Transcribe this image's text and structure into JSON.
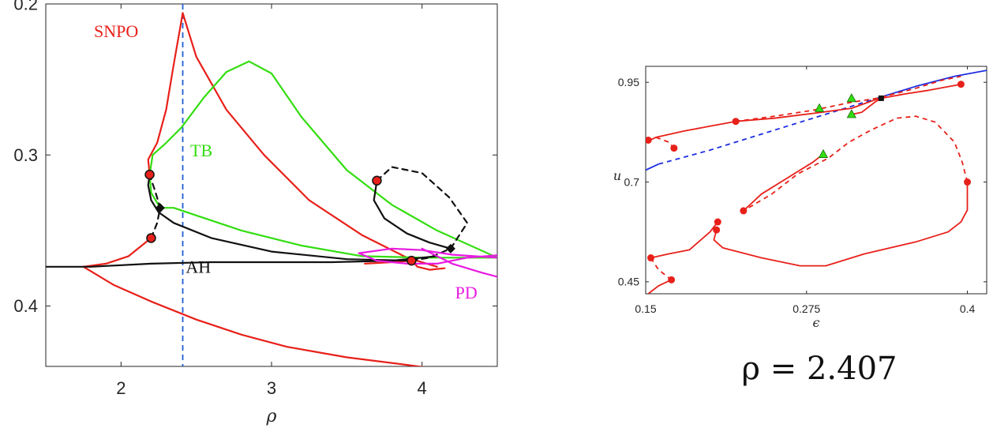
{
  "chart_data": [
    {
      "type": "line",
      "xlabel": "ρ",
      "ylabel": "",
      "xlim": [
        1.5,
        4.5
      ],
      "ylim": [
        0.2,
        0.44
      ],
      "y_reversed": true,
      "x_ticks": [
        "2",
        "3",
        "4"
      ],
      "y_ticks": [
        "0.2",
        "0.3",
        "0.4"
      ],
      "x_tick_values": [
        2,
        3,
        4
      ],
      "y_tick_values": [
        0.2,
        0.3,
        0.4
      ],
      "vline": {
        "x": 2.41,
        "color": "#1f5fd0",
        "style": "dashed"
      },
      "labels": [
        {
          "text": "SNPO",
          "x": 1.82,
          "y": 0.222,
          "color": "#e8201a"
        },
        {
          "text": "TB",
          "x": 2.46,
          "y": 0.301,
          "color": "#33dd11"
        },
        {
          "text": "AH",
          "x": 2.43,
          "y": 0.378,
          "color": "#111111"
        },
        {
          "text": "PD",
          "x": 4.22,
          "y": 0.395,
          "color": "#e81ae0"
        }
      ],
      "series": [
        {
          "color": "#e8201a",
          "style": "solid",
          "points": [
            [
              1.75,
              0.374
            ],
            [
              1.9,
              0.372
            ],
            [
              2.05,
              0.367
            ],
            [
              2.2,
              0.355
            ]
          ]
        },
        {
          "color": "#e8201a",
          "style": "solid",
          "points": [
            [
              1.75,
              0.374
            ],
            [
              1.95,
              0.386
            ],
            [
              2.2,
              0.397
            ],
            [
              2.5,
              0.409
            ],
            [
              2.8,
              0.419
            ],
            [
              3.1,
              0.427
            ],
            [
              3.5,
              0.434
            ],
            [
              3.9,
              0.439
            ],
            [
              4.05,
              0.441
            ]
          ]
        },
        {
          "color": "#e8201a",
          "style": "solid",
          "points": [
            [
              2.19,
              0.313
            ],
            [
              2.18,
              0.303
            ],
            [
              2.24,
              0.292
            ],
            [
              2.3,
              0.27
            ],
            [
              2.35,
              0.24
            ],
            [
              2.41,
              0.206
            ]
          ]
        },
        {
          "color": "#e8201a",
          "style": "solid",
          "points": [
            [
              2.41,
              0.206
            ],
            [
              2.5,
              0.235
            ],
            [
              2.7,
              0.27
            ],
            [
              2.95,
              0.3
            ],
            [
              3.25,
              0.33
            ],
            [
              3.6,
              0.353
            ],
            [
              3.9,
              0.368
            ],
            [
              4.1,
              0.374
            ]
          ]
        },
        {
          "color": "#e8201a",
          "style": "solid",
          "points": [
            [
              3.62,
              0.372
            ],
            [
              3.8,
              0.371
            ],
            [
              3.93,
              0.37
            ],
            [
              3.97,
              0.374
            ],
            [
              4.05,
              0.376
            ],
            [
              4.15,
              0.375
            ]
          ]
        },
        {
          "color": "#33dd11",
          "style": "solid",
          "points": [
            [
              2.19,
              0.313
            ],
            [
              2.21,
              0.3
            ],
            [
              2.3,
              0.292
            ],
            [
              2.4,
              0.282
            ],
            [
              2.55,
              0.262
            ],
            [
              2.7,
              0.245
            ],
            [
              2.85,
              0.238
            ],
            [
              3.0,
              0.246
            ],
            [
              3.2,
              0.275
            ],
            [
              3.5,
              0.31
            ],
            [
              3.8,
              0.333
            ],
            [
              4.1,
              0.35
            ],
            [
              4.5,
              0.368
            ]
          ]
        },
        {
          "color": "#33dd11",
          "style": "solid",
          "points": [
            [
              2.19,
              0.313
            ],
            [
              2.2,
              0.325
            ],
            [
              2.26,
              0.335
            ],
            [
              2.35,
              0.335
            ],
            [
              2.5,
              0.34
            ],
            [
              2.8,
              0.35
            ],
            [
              3.2,
              0.36
            ],
            [
              3.6,
              0.367
            ],
            [
              4.0,
              0.368
            ],
            [
              4.5,
              0.368
            ]
          ]
        },
        {
          "color": "#111111",
          "style": "solid",
          "points": [
            [
              1.5,
              0.374
            ],
            [
              1.8,
              0.374
            ],
            [
              2.2,
              0.372
            ],
            [
              2.6,
              0.371
            ],
            [
              3.0,
              0.371
            ],
            [
              3.4,
              0.371
            ],
            [
              3.8,
              0.37
            ],
            [
              4.1,
              0.367
            ]
          ]
        },
        {
          "color": "#111111",
          "style": "solid",
          "points": [
            [
              2.19,
              0.313
            ],
            [
              2.18,
              0.32
            ],
            [
              2.2,
              0.33
            ],
            [
              2.25,
              0.338
            ],
            [
              2.35,
              0.345
            ],
            [
              2.6,
              0.355
            ],
            [
              3.0,
              0.364
            ],
            [
              3.5,
              0.369
            ],
            [
              3.93,
              0.37
            ]
          ]
        },
        {
          "color": "#111111",
          "style": "dashed",
          "points": [
            [
              2.2,
              0.355
            ],
            [
              2.24,
              0.345
            ],
            [
              2.26,
              0.335
            ],
            [
              2.23,
              0.325
            ],
            [
              2.19,
              0.313
            ]
          ]
        },
        {
          "color": "#111111",
          "style": "solid",
          "points": [
            [
              3.7,
              0.317
            ],
            [
              3.68,
              0.33
            ],
            [
              3.75,
              0.342
            ],
            [
              3.9,
              0.352
            ],
            [
              4.05,
              0.358
            ],
            [
              4.19,
              0.362
            ]
          ]
        },
        {
          "color": "#111111",
          "style": "dashed",
          "points": [
            [
              3.7,
              0.317
            ],
            [
              3.8,
              0.308
            ],
            [
              4.0,
              0.312
            ],
            [
              4.18,
              0.328
            ],
            [
              4.3,
              0.345
            ],
            [
              4.19,
              0.362
            ],
            [
              4.05,
              0.368
            ],
            [
              3.93,
              0.37
            ]
          ]
        },
        {
          "color": "#e81ae0",
          "style": "solid",
          "points": [
            [
              3.58,
              0.365
            ],
            [
              3.8,
              0.362
            ],
            [
              4.0,
              0.363
            ],
            [
              4.2,
              0.366
            ],
            [
              4.5,
              0.368
            ],
            [
              4.55,
              0.369
            ]
          ]
        },
        {
          "color": "#e81ae0",
          "style": "solid",
          "points": [
            [
              3.58,
              0.365
            ],
            [
              3.7,
              0.37
            ],
            [
              3.9,
              0.372
            ],
            [
              4.1,
              0.372
            ],
            [
              4.3,
              0.368
            ],
            [
              4.55,
              0.366
            ]
          ]
        },
        {
          "color": "#e81ae0",
          "style": "solid",
          "points": [
            [
              4.0,
              0.362
            ],
            [
              4.2,
              0.372
            ],
            [
              4.4,
              0.378
            ],
            [
              4.55,
              0.382
            ]
          ]
        }
      ],
      "markers": [
        {
          "x": 2.19,
          "y": 0.313,
          "shape": "circle"
        },
        {
          "x": 2.2,
          "y": 0.355,
          "shape": "circle"
        },
        {
          "x": 3.7,
          "y": 0.317,
          "shape": "circle"
        },
        {
          "x": 3.93,
          "y": 0.37,
          "shape": "circle"
        },
        {
          "x": 2.26,
          "y": 0.335,
          "shape": "diamond"
        },
        {
          "x": 4.19,
          "y": 0.362,
          "shape": "diamond"
        }
      ]
    },
    {
      "type": "line",
      "xlabel": "ϵ",
      "ylabel": "u",
      "xlim": [
        0.15,
        0.415
      ],
      "ylim": [
        0.42,
        0.99
      ],
      "x_ticks": [
        "0.15",
        "0.275",
        "0.4"
      ],
      "y_ticks": [
        "0.45",
        "0.7",
        "0.95"
      ],
      "x_tick_values": [
        0.15,
        0.275,
        0.4
      ],
      "y_tick_values": [
        0.45,
        0.7,
        0.95
      ],
      "caption": "ρ = 2.407",
      "series": [
        {
          "color": "#1f2ee0",
          "style": "solid",
          "points": [
            [
              0.15,
              0.73
            ],
            [
              0.16,
              0.745
            ]
          ]
        },
        {
          "color": "#1f2ee0",
          "style": "dashed",
          "points": [
            [
              0.16,
              0.745
            ],
            [
              0.2,
              0.78
            ],
            [
              0.25,
              0.83
            ],
            [
              0.3,
              0.88
            ],
            [
              0.33,
              0.91
            ]
          ]
        },
        {
          "color": "#1f2ee0",
          "style": "solid",
          "points": [
            [
              0.33,
              0.91
            ],
            [
              0.36,
              0.94
            ],
            [
              0.39,
              0.965
            ],
            [
              0.415,
              0.98
            ]
          ]
        },
        {
          "color": "#e8201a",
          "style": "solid",
          "points": [
            [
              0.15,
              0.8
            ],
            [
              0.158,
              0.812
            ],
            [
              0.18,
              0.828
            ],
            [
              0.2,
              0.84
            ],
            [
              0.22,
              0.852
            ]
          ]
        },
        {
          "color": "#e8201a",
          "style": "dashed",
          "points": [
            [
              0.158,
              0.812
            ],
            [
              0.168,
              0.8
            ],
            [
              0.172,
              0.785
            ]
          ]
        },
        {
          "color": "#e8201a",
          "style": "solid",
          "points": [
            [
              0.22,
              0.852
            ],
            [
              0.25,
              0.86
            ],
            [
              0.28,
              0.872
            ],
            [
              0.31,
              0.885
            ],
            [
              0.33,
              0.908
            ],
            [
              0.35,
              0.92
            ],
            [
              0.37,
              0.93
            ],
            [
              0.395,
              0.945
            ]
          ]
        },
        {
          "color": "#e8201a",
          "style": "dashed",
          "points": [
            [
              0.22,
              0.852
            ],
            [
              0.25,
              0.865
            ],
            [
              0.28,
              0.88
            ],
            [
              0.31,
              0.9
            ],
            [
              0.33,
              0.91
            ],
            [
              0.36,
              0.935
            ],
            [
              0.38,
              0.955
            ],
            [
              0.395,
              0.965
            ]
          ]
        },
        {
          "color": "#e8201a",
          "style": "solid",
          "points": [
            [
              0.308,
              0.868
            ],
            [
              0.318,
              0.875
            ],
            [
              0.328,
              0.9
            ],
            [
              0.333,
              0.91
            ]
          ]
        },
        {
          "color": "#e8201a",
          "style": "solid",
          "points": [
            [
              0.206,
              0.6
            ],
            [
              0.2,
              0.575
            ],
            [
              0.184,
              0.53
            ],
            [
              0.168,
              0.52
            ],
            [
              0.154,
              0.51
            ]
          ]
        },
        {
          "color": "#e8201a",
          "style": "dashed",
          "points": [
            [
              0.154,
              0.51
            ],
            [
              0.16,
              0.48
            ],
            [
              0.17,
              0.455
            ]
          ]
        },
        {
          "color": "#e8201a",
          "style": "solid",
          "points": [
            [
              0.17,
              0.455
            ],
            [
              0.16,
              0.44
            ],
            [
              0.152,
              0.42
            ]
          ]
        },
        {
          "color": "#e8201a",
          "style": "solid",
          "points": [
            [
              0.205,
              0.58
            ],
            [
              0.203,
              0.555
            ],
            [
              0.21,
              0.535
            ],
            [
              0.24,
              0.51
            ],
            [
              0.27,
              0.49
            ],
            [
              0.29,
              0.49
            ],
            [
              0.32,
              0.52
            ],
            [
              0.36,
              0.55
            ],
            [
              0.385,
              0.575
            ],
            [
              0.395,
              0.6
            ],
            [
              0.4,
              0.63
            ],
            [
              0.4,
              0.7
            ]
          ]
        },
        {
          "color": "#e8201a",
          "style": "dashed",
          "points": [
            [
              0.4,
              0.7
            ],
            [
              0.396,
              0.75
            ],
            [
              0.39,
              0.8
            ],
            [
              0.375,
              0.85
            ],
            [
              0.36,
              0.865
            ],
            [
              0.345,
              0.86
            ],
            [
              0.325,
              0.83
            ],
            [
              0.308,
              0.8
            ],
            [
              0.292,
              0.76
            ],
            [
              0.268,
              0.72
            ],
            [
              0.248,
              0.67
            ],
            [
              0.226,
              0.628
            ]
          ]
        },
        {
          "color": "#e8201a",
          "style": "solid",
          "points": [
            [
              0.226,
              0.628
            ],
            [
              0.24,
              0.67
            ],
            [
              0.26,
              0.71
            ],
            [
              0.28,
              0.75
            ],
            [
              0.288,
              0.77
            ]
          ]
        }
      ],
      "markers": [
        {
          "x": 0.152,
          "y": 0.805,
          "shape": "circle"
        },
        {
          "x": 0.172,
          "y": 0.785,
          "shape": "circle"
        },
        {
          "x": 0.22,
          "y": 0.852,
          "shape": "circle"
        },
        {
          "x": 0.395,
          "y": 0.945,
          "shape": "circle"
        },
        {
          "x": 0.4,
          "y": 0.7,
          "shape": "circle"
        },
        {
          "x": 0.226,
          "y": 0.628,
          "shape": "circle"
        },
        {
          "x": 0.154,
          "y": 0.51,
          "shape": "circle"
        },
        {
          "x": 0.17,
          "y": 0.455,
          "shape": "circle"
        },
        {
          "x": 0.206,
          "y": 0.6,
          "shape": "circle"
        },
        {
          "x": 0.205,
          "y": 0.58,
          "shape": "circle"
        },
        {
          "x": 0.285,
          "y": 0.885,
          "shape": "triangle"
        },
        {
          "x": 0.31,
          "y": 0.91,
          "shape": "triangle"
        },
        {
          "x": 0.31,
          "y": 0.87,
          "shape": "triangle"
        },
        {
          "x": 0.288,
          "y": 0.77,
          "shape": "triangle"
        },
        {
          "x": 0.333,
          "y": 0.91,
          "shape": "square"
        }
      ]
    }
  ]
}
